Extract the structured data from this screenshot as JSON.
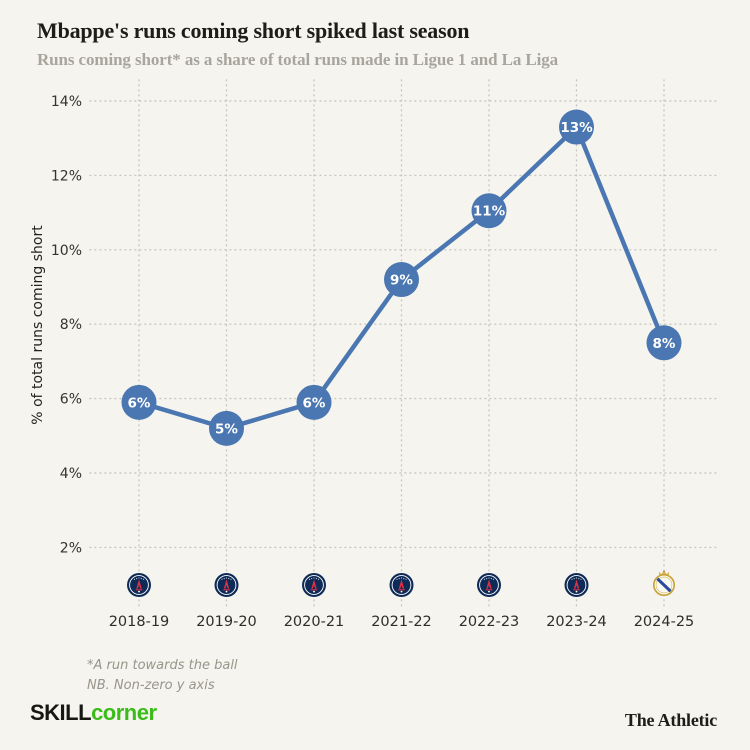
{
  "header": {
    "title": "Mbappe's runs coming short spiked last season",
    "subtitle": "Runs coming short* as a share of total runs made in Ligue 1 and La Liga"
  },
  "chart_data": {
    "type": "line",
    "title": "Mbappe's runs coming short spiked last season",
    "subtitle": "Runs coming short* as a share of total runs made in Ligue 1 and La Liga",
    "ylabel": "% of total runs coming short",
    "xlabel": "",
    "categories": [
      "2018-19",
      "2019-20",
      "2020-21",
      "2021-22",
      "2022-23",
      "2023-24",
      "2024-25"
    ],
    "values": [
      5.9,
      5.2,
      5.9,
      9.2,
      11.05,
      13.3,
      7.5
    ],
    "point_labels": [
      "6%",
      "5%",
      "6%",
      "9%",
      "11%",
      "13%",
      "8%"
    ],
    "clubs": [
      "psg",
      "psg",
      "psg",
      "psg",
      "psg",
      "psg",
      "real-madrid"
    ],
    "yticks": [
      14,
      12,
      10,
      8,
      6,
      4,
      2
    ],
    "ytick_labels": [
      "14%",
      "12%",
      "10%",
      "8%",
      "6%",
      "4%",
      "2%"
    ],
    "ylim": [
      1.5,
      14.5
    ],
    "grid": "dotted, horizontal and vertical",
    "legend_position": "none",
    "line_color": "#4a76b2",
    "marker_color": "#4a76b2",
    "marker_label_color": "#ffffff",
    "grid_color": "#c8c6c0"
  },
  "footnote": {
    "line1": "*A run towards the ball",
    "line2": "NB. Non-zero y axis"
  },
  "branding": {
    "skill": "SKILL",
    "corner": "corner",
    "skill_color": "#181713",
    "corner_color": "#3abc19",
    "athletic": "The Athletic"
  }
}
